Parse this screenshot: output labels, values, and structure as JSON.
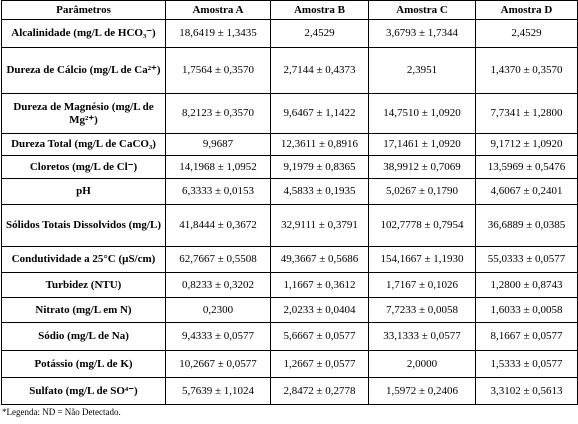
{
  "table": {
    "header": [
      "Parâmetros",
      "Amostra A",
      "Amostra B",
      "Amostra C",
      "Amostra D"
    ],
    "rows": [
      [
        "Alcalinidade (mg/L de HCO₃⁻)",
        "18,6419 ± 1,3435",
        "2,4529",
        "3,6793 ± 1,7344",
        "2,4529"
      ],
      [
        "Dureza de Cálcio (mg/L de Ca²⁺)",
        "1,7564 ± 0,3570",
        "2,7144 ± 0,4373",
        "2,3951",
        "1,4370 ± 0,3570"
      ],
      [
        "Dureza de Magnésio (mg/L de Mg²⁺)",
        "8,2123 ± 0,3570",
        "9,6467 ± 1,1422",
        "14,7510 ± 1,0920",
        "7,7341 ± 1,2800"
      ],
      [
        "Dureza Total (mg/L de CaCO₃)",
        "9,9687",
        "12,3611 ± 0,8916",
        "17,1461 ± 1,0920",
        "9,1712 ± 1,0920"
      ],
      [
        "Cloretos (mg/L de Cl⁻)",
        "14,1968 ± 1,0952",
        "9,1979 ± 0,8365",
        "38,9912 ± 0,7069",
        "13,5969 ± 0,5476"
      ],
      [
        "pH",
        "6,3333 ± 0,0153",
        "4,5833 ± 0,1935",
        "5,0267 ± 0,1790",
        "4,6067 ± 0,2401"
      ],
      [
        "Sólidos Totais Dissolvidos (mg/L)",
        "41,8444 ± 0,3672",
        "32,9111 ± 0,3791",
        "102,7778 ± 0,7954",
        "36,6889 ± 0,0385"
      ],
      [
        "Condutividade a 25°C (µS/cm)",
        "62,7667 ± 0,5508",
        "49,3667 ± 0,5686",
        "154,1667 ± 1,1930",
        "55,0333 ± 0,0577"
      ],
      [
        "Turbidez (NTU)",
        "0,8233 ± 0,3202",
        "1,1667 ± 0,3612",
        "1,7167 ± 0,1026",
        "1,2800 ± 0,8743"
      ],
      [
        "Nitrato (mg/L em N)",
        "0,2300",
        "2,0233 ± 0,0404",
        "7,7233 ± 0,0058",
        "1,6033 ± 0,0058"
      ],
      [
        "Sódio (mg/L de Na)",
        "9,4333 ± 0,0577",
        "5,6667 ± 0,0577",
        "33,1333 ± 0,0577",
        "8,1667 ± 0,0577"
      ],
      [
        "Potássio (mg/L de K)",
        "10,2667 ± 0,0577",
        "1,2667 ± 0,0577",
        "2,0000",
        "1,5333 ± 0,0577"
      ],
      [
        "Sulfato (mg/L de SO⁴⁻)",
        "5,7639 ± 1,1024",
        "2,8472 ± 0,2778",
        "1,5972 ± 0,2406",
        "3,3102 ± 0,5613"
      ]
    ]
  },
  "footnote": "*Legenda: ND = Não Detectado."
}
